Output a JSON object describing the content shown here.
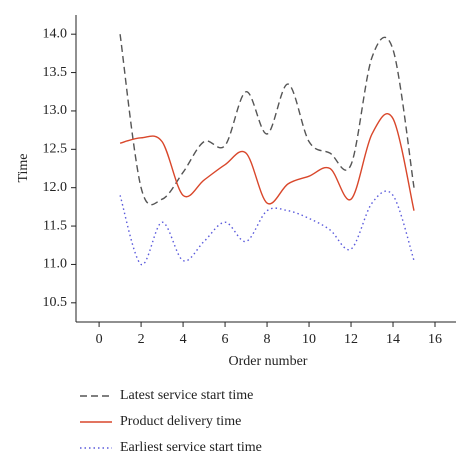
{
  "chart_data": {
    "type": "line",
    "x_label": "Order number",
    "y_label": "Time",
    "x": [
      1,
      2,
      3,
      4,
      5,
      6,
      7,
      8,
      9,
      10,
      11,
      12,
      13,
      14,
      15
    ],
    "series": [
      {
        "name": "Latest service start time",
        "color": "#555555",
        "dash": "dashed",
        "values": [
          14.0,
          12.0,
          11.85,
          12.2,
          12.6,
          12.55,
          13.25,
          12.7,
          13.35,
          12.6,
          12.45,
          12.3,
          13.7,
          13.8,
          12.0
        ]
      },
      {
        "name": "Product delivery time",
        "color": "#d9472b",
        "dash": "solid",
        "values": [
          12.58,
          12.65,
          12.6,
          11.9,
          12.1,
          12.3,
          12.45,
          11.8,
          12.05,
          12.15,
          12.25,
          11.85,
          12.7,
          12.9,
          11.7
        ]
      },
      {
        "name": "Earliest service start time",
        "color": "#5a5adc",
        "dash": "dotted",
        "values": [
          11.9,
          11.0,
          11.55,
          11.05,
          11.3,
          11.55,
          11.3,
          11.7,
          11.7,
          11.6,
          11.45,
          11.2,
          11.8,
          11.9,
          11.05
        ]
      }
    ],
    "xlim": [
      -1.1,
      17
    ],
    "ylim": [
      10.25,
      14.25
    ],
    "xticks": [
      0,
      2,
      4,
      6,
      8,
      10,
      12,
      14,
      16
    ],
    "yticks": [
      10.5,
      {
        "value": 11,
        "label": "11.0"
      },
      11.5,
      {
        "value": 12,
        "label": "12.0"
      },
      12.5,
      {
        "value": 13,
        "label": "13.0"
      },
      13.5,
      {
        "value": 14,
        "label": "14.0"
      }
    ]
  }
}
